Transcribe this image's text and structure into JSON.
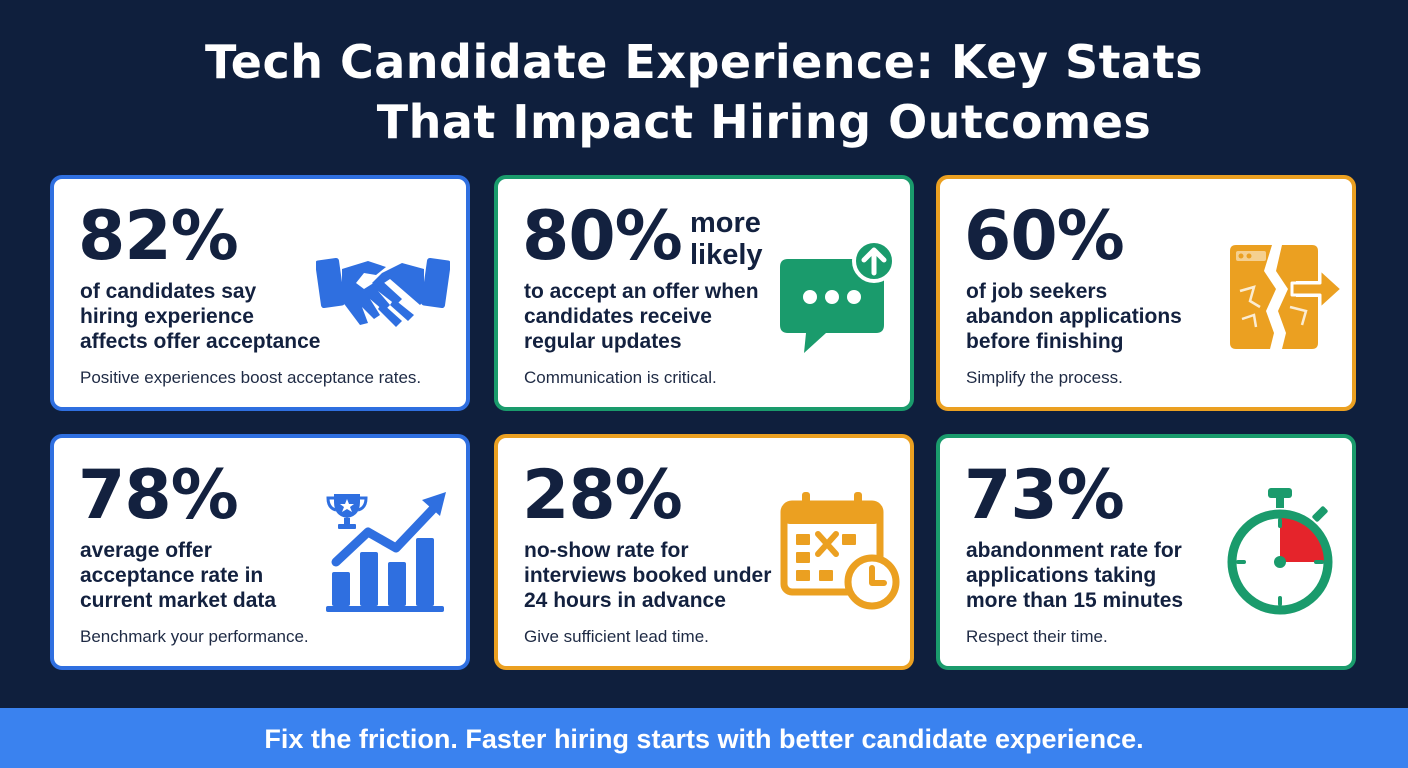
{
  "title": {
    "line1": "Tech Candidate Experience: Key Stats",
    "line2": "That Impact Hiring Outcomes"
  },
  "colors": {
    "background": "#0f1f3d",
    "blue": "#2f6fe0",
    "green": "#1a9b6c",
    "orange": "#eba021",
    "footer": "#3a82ef",
    "red": "#e5242b"
  },
  "cards": [
    {
      "stat": "82%",
      "lines": [
        "of candidates say",
        "hiring experience",
        "affects offer acceptance"
      ],
      "note": "Positive experiences boost acceptance rates.",
      "icon": "handshake-icon"
    },
    {
      "stat": "80%",
      "stat_extra": [
        "more",
        "likely"
      ],
      "lines": [
        "to accept an offer when",
        "candidates receive",
        "regular updates"
      ],
      "note": "Communication is critical.",
      "icon": "chat-update-icon"
    },
    {
      "stat": "60%",
      "lines": [
        "of job seekers",
        "abandon applications",
        "before finishing"
      ],
      "note": "Simplify the process.",
      "icon": "broken-form-exit-icon"
    },
    {
      "stat": "78%",
      "lines": [
        "average offer",
        "acceptance rate in",
        "current market data"
      ],
      "note": "Benchmark your performance.",
      "icon": "trophy-growth-chart-icon"
    },
    {
      "stat": "28%",
      "lines": [
        "no-show rate for",
        "interviews booked under",
        "24 hours in advance"
      ],
      "note": "Give sufficient lead time.",
      "icon": "calendar-clock-icon"
    },
    {
      "stat": "73%",
      "lines": [
        "abandonment rate for",
        "applications taking",
        "more than 15 minutes"
      ],
      "note": "Respect their time.",
      "icon": "stopwatch-icon"
    }
  ],
  "footer": {
    "text": "Fix the friction. Faster hiring starts with better candidate experience."
  }
}
